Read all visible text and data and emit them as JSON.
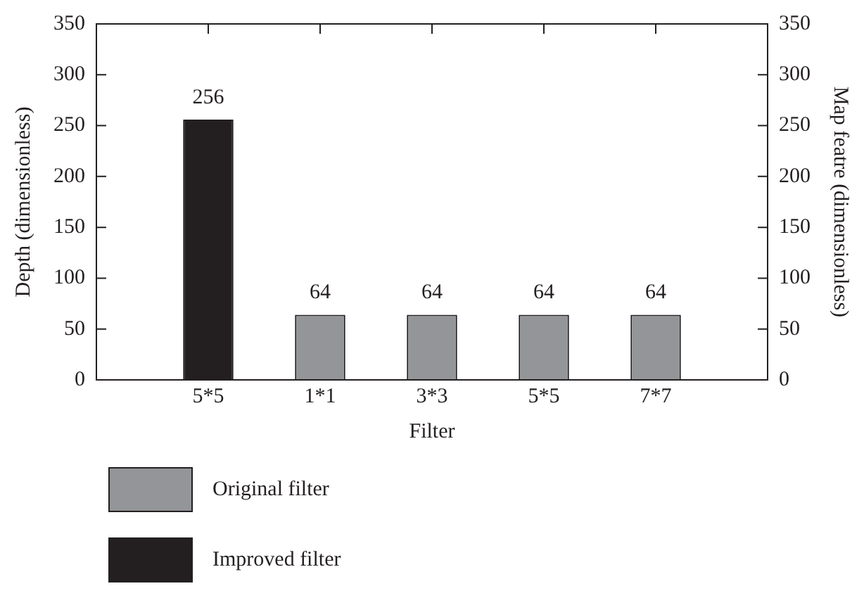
{
  "chart_data": {
    "type": "bar",
    "xlabel": "Filter",
    "ylabel": "Depth (dimensionless)",
    "y2label": "Map featre (dimensionless)",
    "categories": [
      "5*5",
      "1*1",
      "3*3",
      "5*5",
      "7*7"
    ],
    "series": [
      {
        "name": "Original filter",
        "color": "#939598",
        "values": [
          null,
          64,
          64,
          64,
          64
        ]
      },
      {
        "name": "Improved filter",
        "color": "#231f20",
        "values": [
          256,
          null,
          null,
          null,
          null
        ]
      }
    ],
    "ylim": [
      0,
      350
    ],
    "yticks": [
      0,
      50,
      100,
      150,
      200,
      250,
      300,
      350
    ],
    "y2lim": [
      0,
      350
    ],
    "y2ticks": [
      0,
      50,
      100,
      150,
      200,
      250,
      300,
      350
    ],
    "data_labels": true,
    "grid": false,
    "legend": "bottom left"
  }
}
